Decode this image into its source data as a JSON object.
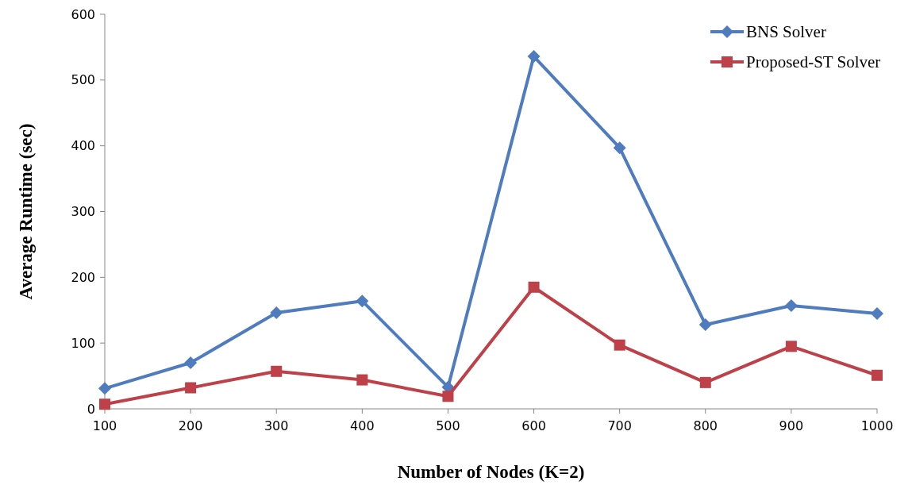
{
  "chart_data": {
    "type": "line",
    "xlabel": "Number of Nodes (K=2)",
    "ylabel": "Average Runtime (sec)",
    "categories": [
      "100",
      "200",
      "300",
      "400",
      "500",
      "600",
      "700",
      "800",
      "900",
      "1000"
    ],
    "series": [
      {
        "name": "BNS Solver",
        "color": "#4f7bbf",
        "marker": "diamond",
        "values": [
          31,
          70,
          146,
          164,
          33,
          536,
          397,
          128,
          157,
          145
        ]
      },
      {
        "name": "Proposed-ST Solver",
        "color": "#be4048",
        "marker": "square",
        "values": [
          7,
          32,
          57,
          44,
          19,
          185,
          97,
          40,
          95,
          51
        ]
      }
    ],
    "ylim": [
      0,
      600
    ],
    "yticks": [
      0,
      100,
      200,
      300,
      400,
      500,
      600
    ],
    "grid": false,
    "legend": "top right"
  }
}
